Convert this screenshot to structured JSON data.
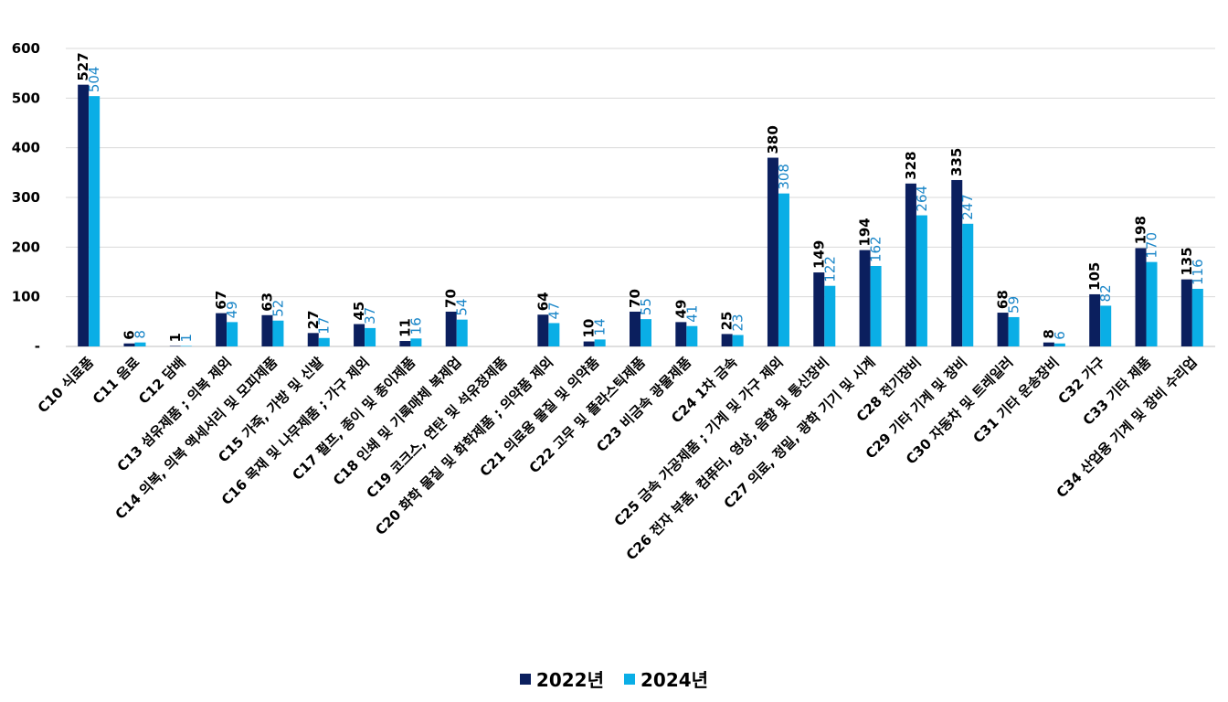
{
  "chart_data": {
    "type": "bar",
    "title": "",
    "xlabel": "",
    "ylabel": "",
    "ylim": [
      0,
      600
    ],
    "yticks": [
      {
        "value": 0,
        "label": "-"
      },
      {
        "value": 100,
        "label": "100"
      },
      {
        "value": 200,
        "label": "200"
      },
      {
        "value": 300,
        "label": "300"
      },
      {
        "value": 400,
        "label": "400"
      },
      {
        "value": 500,
        "label": "500"
      },
      {
        "value": 600,
        "label": "600"
      }
    ],
    "grid": true,
    "legend_position": "bottom-center",
    "categories": [
      "C10 식료품",
      "C11 음료",
      "C12 담배",
      "C13 섬유제품 ; 의복 제외",
      "C14 의복, 의복 액세서리 및 모피제품",
      "C15 가죽, 가방 및 신발",
      "C16 목재 및 나무제품 ; 가구 제외",
      "C17 펄프, 종이 및 종이제품",
      "C18 인쇄 및 기록매체 복제업",
      "C19 코크스, 연탄 및 석유정제품",
      "C20 화학 물질 및 화학제품 ; 의약품 제외",
      "C21 의료용 물질 및 의약품",
      "C22 고무 및 플라스틱제품",
      "C23 비금속 광물제품",
      "C24 1차 금속",
      "C25 금속 가공제품 ; 기계 및 가구 제외",
      "C26 전자 부품, 컴퓨터, 영상, 음향 및 통신장비",
      "C27 의료, 정밀, 광학 기기 및 시계",
      "C28 전기장비",
      "C29 기타 기계 및 장비",
      "C30 자동차 및 트레일러",
      "C31 기타 운송장비",
      "C32 가구",
      "C33 기타 제품",
      "C34 산업용 기계 및 장비 수리업"
    ],
    "series": [
      {
        "name": "2022년",
        "color": "#0b1f5e",
        "label_color": "#000000",
        "values": [
          527,
          6,
          1,
          67,
          63,
          27,
          45,
          11,
          70,
          null,
          64,
          10,
          70,
          49,
          25,
          380,
          149,
          194,
          328,
          335,
          68,
          8,
          105,
          198,
          135
        ],
        "labels": [
          "527",
          "6",
          "1",
          "67",
          "63",
          "27",
          "45",
          "11",
          "70",
          "",
          "64",
          "10",
          "70",
          "49",
          "25",
          "380",
          "149",
          "194",
          "328",
          "335",
          "68",
          "8",
          "105",
          "198",
          "135"
        ]
      },
      {
        "name": "2024년",
        "color": "#0aaee6",
        "label_color": "#1a86c8",
        "values": [
          504,
          8,
          1,
          49,
          52,
          17,
          37,
          16,
          54,
          null,
          47,
          14,
          55,
          41,
          23,
          308,
          122,
          162,
          264,
          247,
          59,
          6,
          82,
          170,
          116
        ],
        "labels": [
          "504",
          "8",
          "1",
          "49",
          "52",
          "17",
          "37",
          "16",
          "54",
          "",
          "47",
          "14",
          "55",
          "41",
          "23",
          "308",
          "122",
          "162",
          "264",
          "247",
          "59",
          "6",
          "82",
          "170",
          "116"
        ]
      }
    ]
  }
}
